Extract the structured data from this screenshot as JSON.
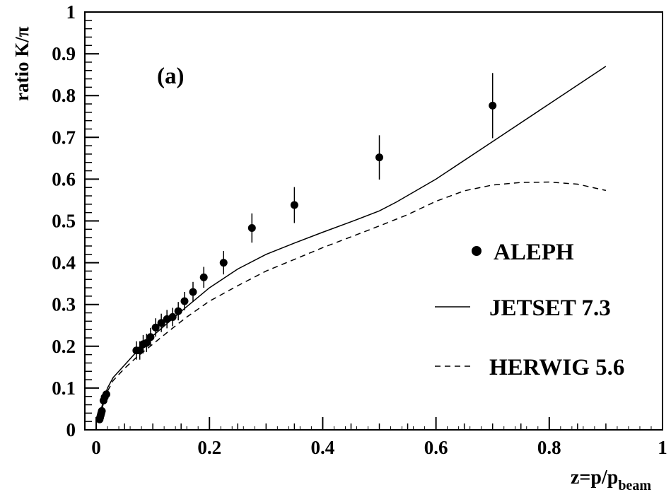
{
  "chart_data": {
    "type": "scatter",
    "panel_label": "(a)",
    "xlabel_parts": {
      "main": "z=p/p",
      "sub": "beam"
    },
    "ylabel": "ratio K/π",
    "xlim": [
      -0.02,
      1.0
    ],
    "ylim": [
      0,
      1.0
    ],
    "grid": false,
    "legend_placement": "right",
    "x_ticks": [
      {
        "value": 0,
        "label": "0"
      },
      {
        "value": 0.2,
        "label": "0.2"
      },
      {
        "value": 0.4,
        "label": "0.4"
      },
      {
        "value": 0.6,
        "label": "0.6"
      },
      {
        "value": 0.8,
        "label": "0.8"
      },
      {
        "value": 1.0,
        "label": "1"
      }
    ],
    "y_ticks": [
      {
        "value": 0,
        "label": "0"
      },
      {
        "value": 0.1,
        "label": "0.1"
      },
      {
        "value": 0.2,
        "label": "0.2"
      },
      {
        "value": 0.3,
        "label": "0.3"
      },
      {
        "value": 0.4,
        "label": "0.4"
      },
      {
        "value": 0.5,
        "label": "0.5"
      },
      {
        "value": 0.6,
        "label": "0.6"
      },
      {
        "value": 0.7,
        "label": "0.7"
      },
      {
        "value": 0.8,
        "label": "0.8"
      },
      {
        "value": 0.9,
        "label": "0.9"
      },
      {
        "value": 1.0,
        "label": "1"
      }
    ],
    "series": [
      {
        "name": "ALEPH",
        "kind": "points",
        "points": [
          {
            "x": 0.006,
            "y": 0.025,
            "err": 0.005
          },
          {
            "x": 0.007,
            "y": 0.03,
            "err": 0.005
          },
          {
            "x": 0.008,
            "y": 0.035,
            "err": 0.005
          },
          {
            "x": 0.009,
            "y": 0.04,
            "err": 0.005
          },
          {
            "x": 0.01,
            "y": 0.045,
            "err": 0.005
          },
          {
            "x": 0.013,
            "y": 0.07,
            "err": 0.008
          },
          {
            "x": 0.015,
            "y": 0.078,
            "err": 0.008
          },
          {
            "x": 0.018,
            "y": 0.085,
            "err": 0.008
          },
          {
            "x": 0.071,
            "y": 0.19,
            "err": 0.022
          },
          {
            "x": 0.077,
            "y": 0.19,
            "err": 0.022
          },
          {
            "x": 0.083,
            "y": 0.205,
            "err": 0.022
          },
          {
            "x": 0.089,
            "y": 0.208,
            "err": 0.022
          },
          {
            "x": 0.096,
            "y": 0.222,
            "err": 0.022
          },
          {
            "x": 0.105,
            "y": 0.245,
            "err": 0.022
          },
          {
            "x": 0.115,
            "y": 0.256,
            "err": 0.022
          },
          {
            "x": 0.125,
            "y": 0.265,
            "err": 0.022
          },
          {
            "x": 0.135,
            "y": 0.27,
            "err": 0.022
          },
          {
            "x": 0.145,
            "y": 0.284,
            "err": 0.022
          },
          {
            "x": 0.156,
            "y": 0.308,
            "err": 0.022
          },
          {
            "x": 0.171,
            "y": 0.33,
            "err": 0.024
          },
          {
            "x": 0.19,
            "y": 0.365,
            "err": 0.025
          },
          {
            "x": 0.225,
            "y": 0.4,
            "err": 0.028
          },
          {
            "x": 0.275,
            "y": 0.483,
            "err": 0.035
          },
          {
            "x": 0.35,
            "y": 0.538,
            "err": 0.043
          },
          {
            "x": 0.5,
            "y": 0.652,
            "err": 0.053
          },
          {
            "x": 0.7,
            "y": 0.776,
            "err": 0.078
          }
        ]
      },
      {
        "name": "JETSET 7.3",
        "kind": "line",
        "style": "solid",
        "x": [
          0.005,
          0.01,
          0.015,
          0.02,
          0.03,
          0.05,
          0.07,
          0.1,
          0.13,
          0.16,
          0.2,
          0.25,
          0.3,
          0.35,
          0.4,
          0.45,
          0.5,
          0.53,
          0.6,
          0.7,
          0.8,
          0.9
        ],
        "y": [
          0.03,
          0.055,
          0.08,
          0.1,
          0.125,
          0.155,
          0.185,
          0.225,
          0.26,
          0.295,
          0.34,
          0.385,
          0.42,
          0.447,
          0.473,
          0.498,
          0.524,
          0.545,
          0.6,
          0.69,
          0.78,
          0.87
        ]
      },
      {
        "name": "HERWIG 5.6",
        "kind": "line",
        "style": "dashed",
        "x": [
          0.005,
          0.01,
          0.015,
          0.02,
          0.03,
          0.05,
          0.07,
          0.1,
          0.13,
          0.16,
          0.2,
          0.25,
          0.3,
          0.35,
          0.4,
          0.45,
          0.5,
          0.55,
          0.6,
          0.65,
          0.7,
          0.75,
          0.8,
          0.85,
          0.9
        ],
        "y": [
          0.025,
          0.05,
          0.072,
          0.092,
          0.118,
          0.147,
          0.172,
          0.205,
          0.238,
          0.27,
          0.308,
          0.345,
          0.38,
          0.408,
          0.436,
          0.462,
          0.488,
          0.515,
          0.547,
          0.572,
          0.586,
          0.592,
          0.593,
          0.588,
          0.573
        ]
      }
    ]
  }
}
